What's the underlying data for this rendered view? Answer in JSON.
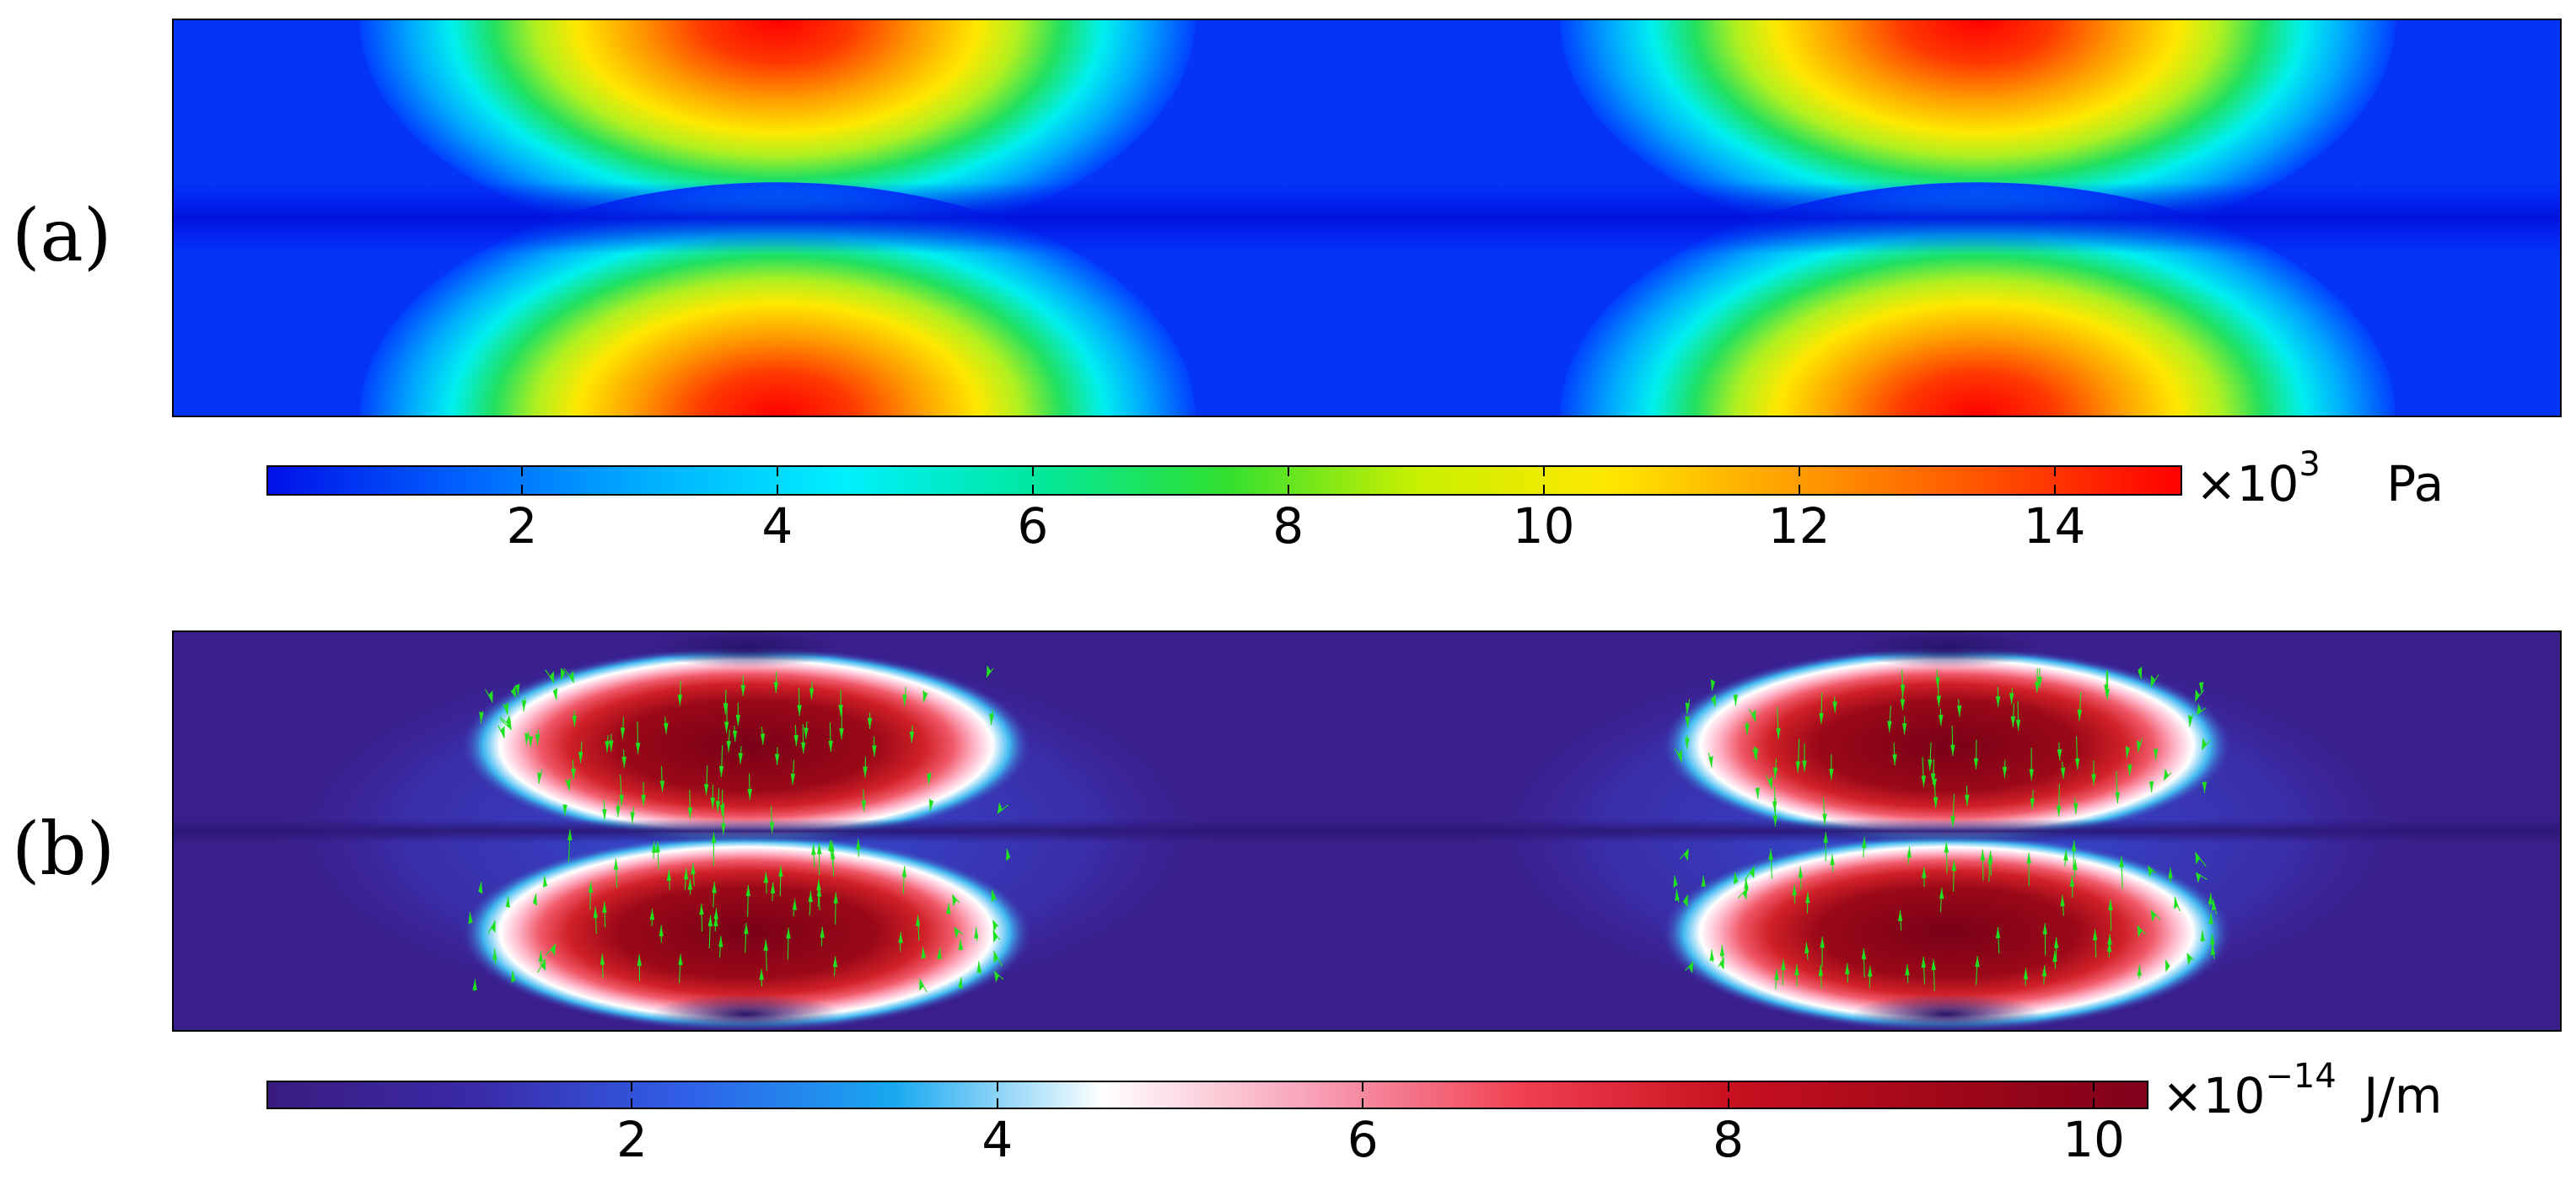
{
  "chart_data": [
    {
      "type": "heatmap",
      "panel_label": "(a)",
      "description_field": "periodic stress field with two cells along x, lobes at top and bottom walls, zero along centerline",
      "max_value": 15,
      "colorbar": {
        "colors": [
          "#0010e8",
          "#0060ff",
          "#00b0ff",
          "#00f0ff",
          "#00e8a0",
          "#30e030",
          "#c8f000",
          "#ffe800",
          "#ff9c00",
          "#ff5000",
          "#ff0000"
        ],
        "ticks": [
          2,
          4,
          6,
          8,
          10,
          12,
          14
        ],
        "range": [
          0,
          15
        ],
        "multiplier": "×10",
        "exponent": "3",
        "unit": "Pa"
      }
    },
    {
      "type": "heatmap",
      "panel_label": "(b)",
      "max_value": 10.3,
      "arrows": "green vector arrows, pointing downward in upper lobes and upward in lower lobes",
      "colorbar": {
        "colors": [
          "#3a1c80",
          "#3a2aa8",
          "#3060e8",
          "#18a8f0",
          "#ffffff",
          "#f8a0b8",
          "#f04050",
          "#c81020",
          "#a00818",
          "#80001a"
        ],
        "ticks": [
          2,
          4,
          6,
          8,
          10
        ],
        "range": [
          0,
          10.3
        ],
        "multiplier": "×10",
        "exponent": "−14",
        "unit": "J/m"
      },
      "arrow_color": "#20e020"
    }
  ]
}
